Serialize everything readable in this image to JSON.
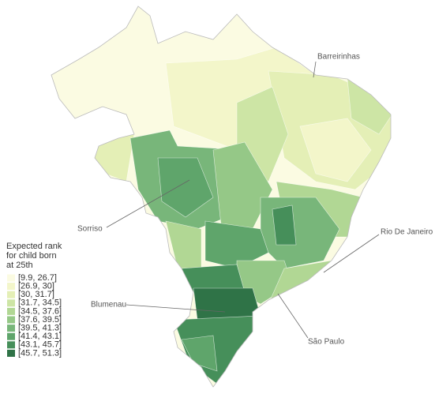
{
  "legend": {
    "title_lines": [
      "Expected rank",
      "for child born",
      "at 25th"
    ],
    "items": [
      {
        "label": "[9.9, 26.7]",
        "color": "#fbfbe2"
      },
      {
        "label": "[26.9, 30]",
        "color": "#f3f6ca"
      },
      {
        "label": "[30, 31.7]",
        "color": "#e4efb6"
      },
      {
        "label": "[31.7, 34.5]",
        "color": "#cde5a5"
      },
      {
        "label": "[34.5, 37.6]",
        "color": "#b1d794"
      },
      {
        "label": "[37.6, 39.5]",
        "color": "#95c887"
      },
      {
        "label": "[39.5, 41.3]",
        "color": "#78b67a"
      },
      {
        "label": "[41.4, 43.1]",
        "color": "#5fa56b"
      },
      {
        "label": "[43.1, 45.7]",
        "color": "#468f5a"
      },
      {
        "label": "[45.7, 51.3]",
        "color": "#2f7347"
      }
    ]
  },
  "cities": [
    {
      "label": "Barreirinhas"
    },
    {
      "label": "Sorriso"
    },
    {
      "label": "Rio De Janeiro"
    },
    {
      "label": "Blumenau"
    },
    {
      "label": "São Paulo"
    }
  ]
}
